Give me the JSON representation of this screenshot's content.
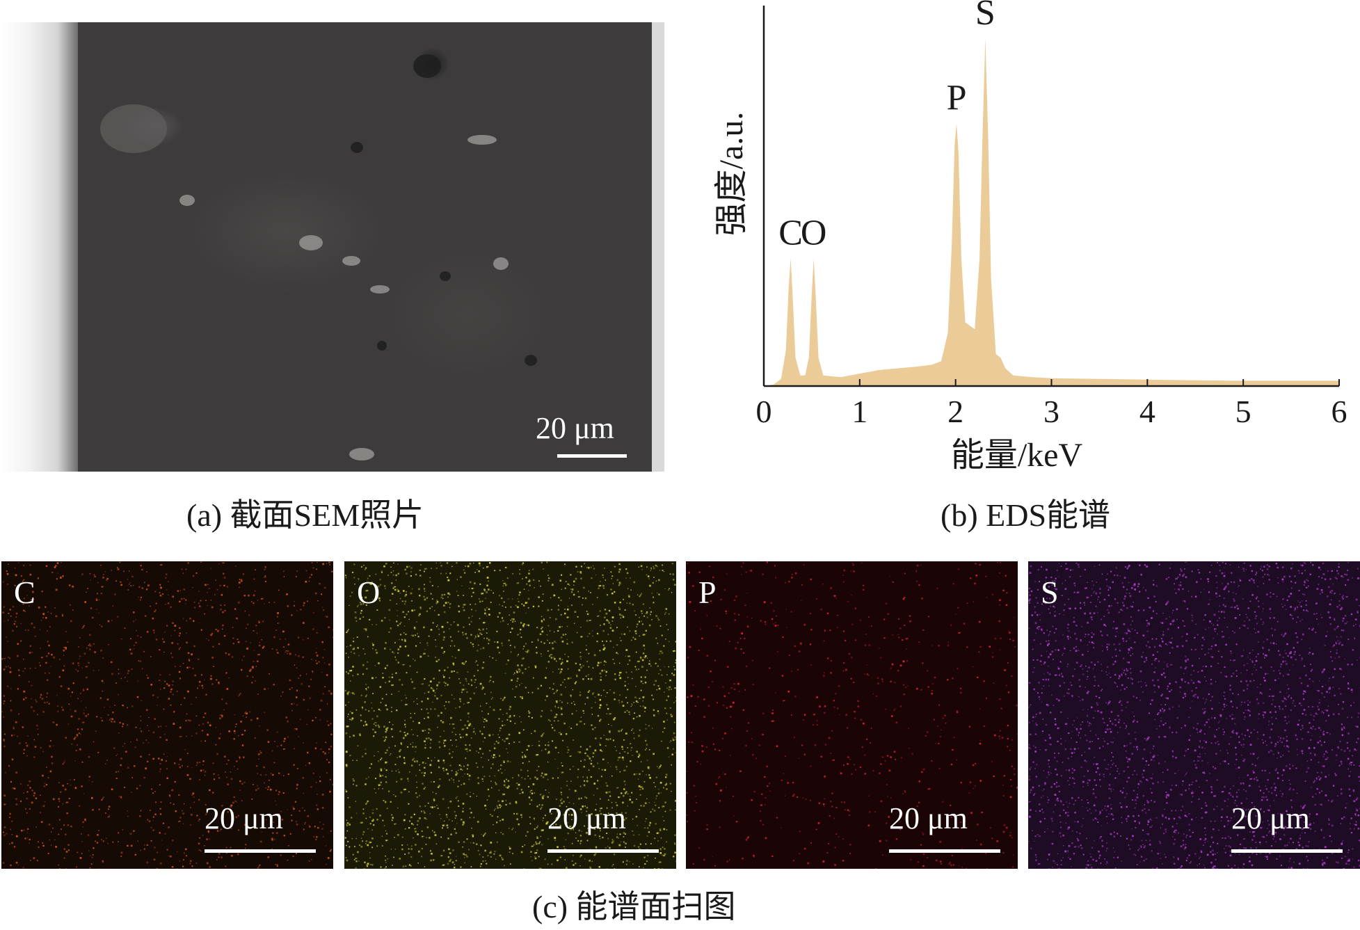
{
  "panel_a": {
    "scale_label": "20 μm",
    "caption": "(a) 截面SEM照片"
  },
  "panel_b": {
    "caption": "(b) EDS能谱",
    "chart_data": {
      "type": "area",
      "title": "",
      "xlabel": "能量/keV",
      "ylabel": "强度/a.u.",
      "xlim": [
        0,
        6
      ],
      "xticks": [
        "0",
        "1",
        "2",
        "3",
        "4",
        "5",
        "6"
      ],
      "grid": false,
      "color": "#ebcb97",
      "peaks": [
        {
          "label": "C",
          "x": 0.28,
          "y": 0.36
        },
        {
          "label": "O",
          "x": 0.52,
          "y": 0.36
        },
        {
          "label": "P",
          "x": 2.01,
          "y": 0.74
        },
        {
          "label": "S",
          "x": 2.31,
          "y": 0.98
        }
      ],
      "spectrum": {
        "x": [
          0.0,
          0.1,
          0.18,
          0.23,
          0.26,
          0.28,
          0.3,
          0.33,
          0.38,
          0.43,
          0.47,
          0.5,
          0.52,
          0.54,
          0.57,
          0.62,
          0.8,
          1.0,
          1.2,
          1.4,
          1.6,
          1.75,
          1.85,
          1.92,
          1.96,
          1.99,
          2.01,
          2.03,
          2.06,
          2.1,
          2.15,
          2.2,
          2.25,
          2.28,
          2.31,
          2.34,
          2.37,
          2.42,
          2.47,
          2.52,
          2.6,
          2.8,
          3.0,
          3.5,
          4.0,
          4.5,
          5.0,
          5.5,
          6.0
        ],
        "y": [
          0.0,
          0.004,
          0.02,
          0.1,
          0.28,
          0.36,
          0.26,
          0.08,
          0.03,
          0.03,
          0.08,
          0.26,
          0.36,
          0.26,
          0.08,
          0.03,
          0.025,
          0.035,
          0.045,
          0.05,
          0.055,
          0.06,
          0.07,
          0.15,
          0.4,
          0.68,
          0.74,
          0.66,
          0.36,
          0.18,
          0.17,
          0.16,
          0.36,
          0.7,
          0.98,
          0.7,
          0.3,
          0.09,
          0.08,
          0.05,
          0.03,
          0.025,
          0.022,
          0.02,
          0.018,
          0.016,
          0.015,
          0.015,
          0.015
        ]
      }
    }
  },
  "panel_c": {
    "caption": "(c) 能谱面扫图",
    "maps": [
      {
        "element": "C",
        "scale_label": "20 μm",
        "base": "#160a05",
        "dot": "#d8561e",
        "dot_density": 1400
      },
      {
        "element": "O",
        "scale_label": "20 μm",
        "base": "#1a1a06",
        "dot": "#d6d23a",
        "dot_density": 2600
      },
      {
        "element": "P",
        "scale_label": "20 μm",
        "base": "#1a0405",
        "dot": "#e0233a",
        "dot_density": 650
      },
      {
        "element": "S",
        "scale_label": "20 μm",
        "base": "#1d0c23",
        "dot": "#b43fd1",
        "dot_density": 2600
      }
    ]
  }
}
